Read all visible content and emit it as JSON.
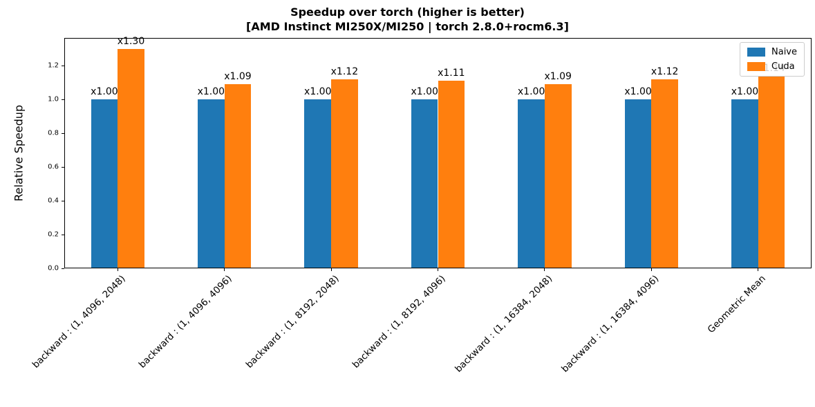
{
  "figure": {
    "title_line1": "Speedup over torch (higher is better)",
    "title_line2": "[AMD Instinct MI250X/MI250 | torch 2.8.0+rocm6.3]"
  },
  "chart_data": {
    "type": "bar",
    "title": "Speedup over torch (higher is better)\n[AMD Instinct MI250X/MI250 | torch 2.8.0+rocm6.3]",
    "xlabel": "",
    "ylabel": "Relative Speedup",
    "categories": [
      "backward : (1, 4096, 2048)",
      "backward : (1, 4096, 4096)",
      "backward : (1, 8192, 2048)",
      "backward : (1, 8192, 4096)",
      "backward : (1, 16384, 2048)",
      "backward : (1, 16384, 4096)",
      "Geometric Mean"
    ],
    "series": [
      {
        "name": "Naive",
        "color": "#1f77b4",
        "values": [
          1.0,
          1.0,
          1.0,
          1.0,
          1.0,
          1.0,
          1.0
        ],
        "labels": [
          "x1.00",
          "x1.00",
          "x1.00",
          "x1.00",
          "x1.00",
          "x1.00",
          "x1.00"
        ]
      },
      {
        "name": "Cuda",
        "color": "#ff7f0e",
        "values": [
          1.3,
          1.09,
          1.12,
          1.11,
          1.09,
          1.12,
          1.14
        ],
        "labels": [
          "x1.30",
          "x1.09",
          "x1.12",
          "x1.11",
          "x1.09",
          "x1.12",
          "x1.14"
        ]
      }
    ],
    "yticks": [
      0.0,
      0.2,
      0.4,
      0.6,
      0.8,
      1.0,
      1.2
    ],
    "ytick_labels": [
      "0.0",
      "0.2",
      "0.4",
      "0.6",
      "0.8",
      "1.0",
      "1.2"
    ],
    "ylim": [
      0,
      1.365
    ],
    "bar_width_fraction": 0.25,
    "grid": false,
    "legend": {
      "position": "upper-right",
      "entries": [
        "Naive",
        "Cuda"
      ]
    },
    "xtick_rotation_deg": 45
  }
}
